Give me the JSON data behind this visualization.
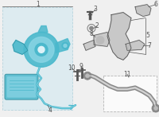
{
  "bg_color": "#f0f0f0",
  "box1_fill": "#cce8f0",
  "box1_edge": "#88bbcc",
  "box11_fill": "#ffffff",
  "box11_edge": "#999999",
  "teal": "#4ab8cc",
  "teal_dark": "#2a8899",
  "teal_light": "#88d4e4",
  "gray_dark": "#555555",
  "gray_mid": "#888888",
  "gray_light": "#bbbbbb",
  "label_fs": 5.5
}
